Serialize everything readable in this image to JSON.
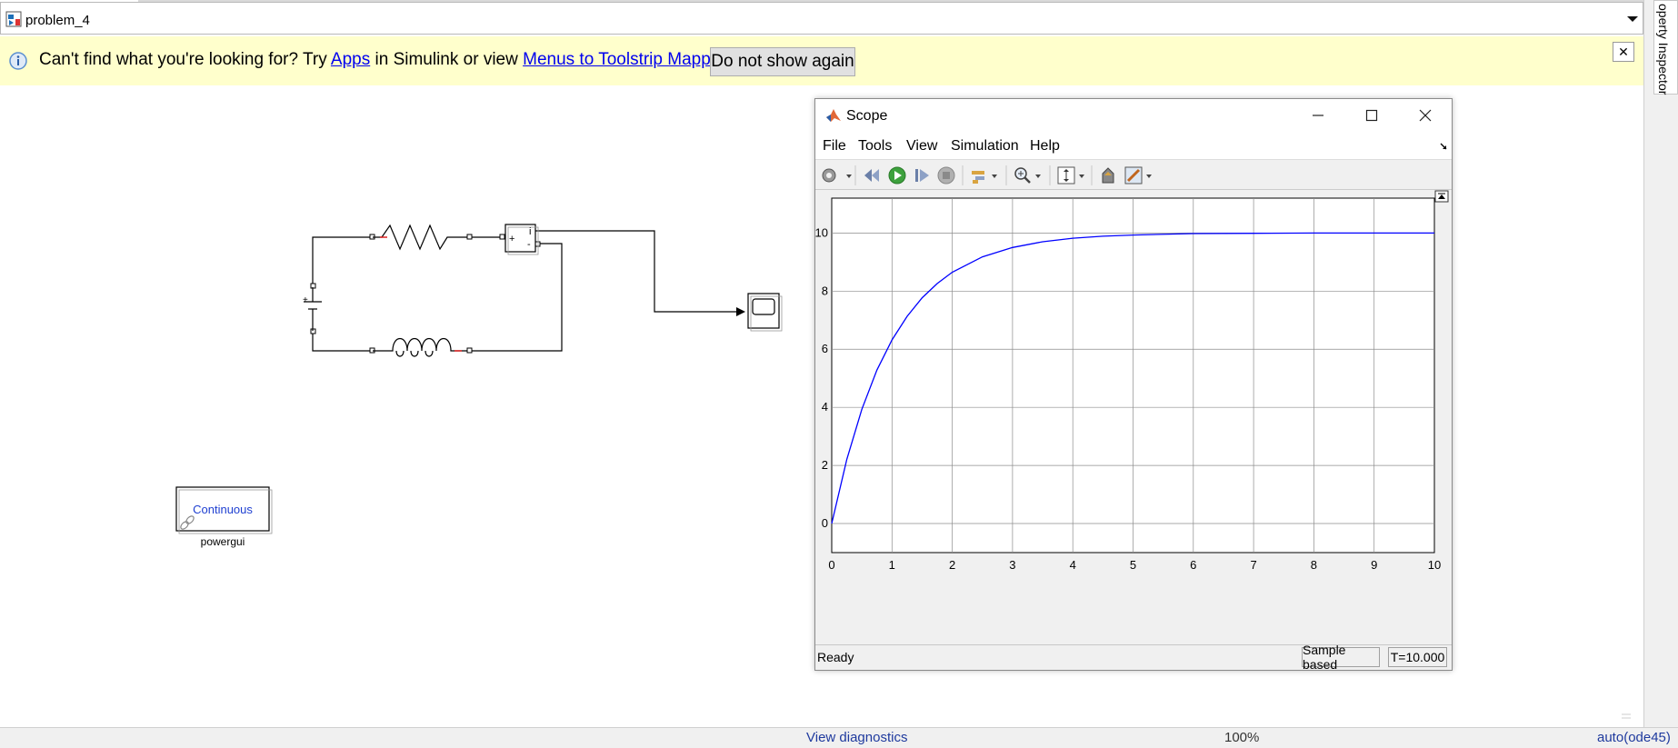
{
  "model": {
    "name": "problem_4"
  },
  "info_bar": {
    "text_before_apps": "Can't find what you're looking for? Try ",
    "apps_link": "Apps",
    "text_middle": " in Simulink or view ",
    "mapping_link": "Menus to Toolstrip Mapping",
    "text_after": ".",
    "dont_show_button": "Do not show again",
    "close_glyph": "✕"
  },
  "property_inspector": {
    "label": "operty Inspector"
  },
  "diagram": {
    "sensor_port_i": "i",
    "sensor_port_plus": "+",
    "sensor_port_minus": "-",
    "battery_plus": "+",
    "powergui_mode": "Continuous",
    "powergui_label": "powergui"
  },
  "status_bar": {
    "view_diagnostics": "View diagnostics",
    "zoom": "100%",
    "solver": "auto(ode45)"
  },
  "scope": {
    "title": "Scope",
    "menus": [
      "File",
      "Tools",
      "View",
      "Simulation",
      "Help"
    ],
    "toolbar_icons": [
      "gear-icon",
      "rewind-icon",
      "run-icon",
      "step-forward-icon",
      "stop-icon",
      "highlight-icon",
      "zoom-in-icon",
      "scale-axes-icon",
      "signal-select-icon",
      "edit-icon"
    ],
    "status": "Ready",
    "sample_mode": "Sample based",
    "time": "T=10.000",
    "line_color": "#0000ff"
  },
  "chart_data": {
    "type": "line",
    "xlim": [
      0,
      10
    ],
    "ylim": [
      -1,
      11.2
    ],
    "xticks": [
      0,
      1,
      2,
      3,
      4,
      5,
      6,
      7,
      8,
      9,
      10
    ],
    "yticks": [
      0,
      2,
      4,
      6,
      8,
      10
    ],
    "grid": true,
    "series": [
      {
        "x": [
          0,
          0.25,
          0.5,
          0.75,
          1,
          1.25,
          1.5,
          1.75,
          2,
          2.5,
          3,
          3.5,
          4,
          4.5,
          5,
          6,
          7,
          8,
          9,
          10
        ],
        "y": [
          0,
          2.21,
          3.93,
          5.28,
          6.32,
          7.13,
          7.77,
          8.26,
          8.65,
          9.18,
          9.5,
          9.7,
          9.82,
          9.89,
          9.93,
          9.98,
          9.99,
          10.0,
          10.0,
          10.0
        ]
      }
    ],
    "title": "",
    "xlabel": "",
    "ylabel": ""
  }
}
